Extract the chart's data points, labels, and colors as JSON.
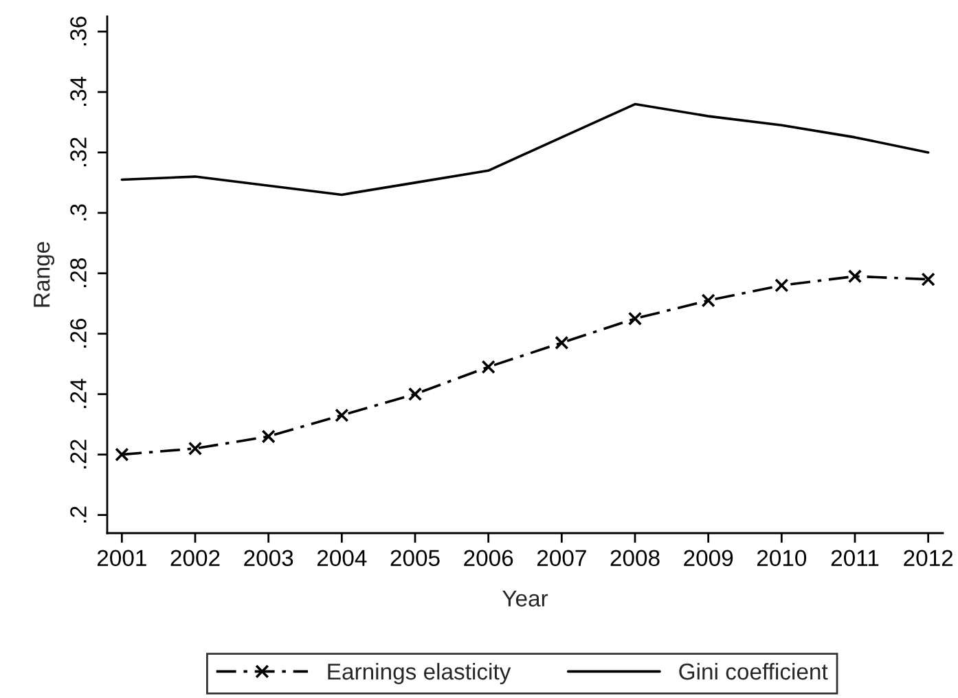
{
  "chart_data": {
    "type": "line",
    "xlabel": "Year",
    "ylabel": "Range",
    "x": [
      2001,
      2002,
      2003,
      2004,
      2005,
      2006,
      2007,
      2008,
      2009,
      2010,
      2011,
      2012
    ],
    "series": [
      {
        "name": "Earnings elasticity",
        "color": "#000000",
        "marker": "cross",
        "line_style": "dashdot",
        "values": [
          0.22,
          0.222,
          0.226,
          0.233,
          0.24,
          0.249,
          0.257,
          0.265,
          0.271,
          0.276,
          0.279,
          0.278
        ]
      },
      {
        "name": "Gini coefficient",
        "color": "#000000",
        "marker": "none",
        "line_style": "solid",
        "values": [
          0.311,
          0.312,
          0.309,
          0.306,
          0.31,
          0.314,
          0.325,
          0.336,
          0.332,
          0.329,
          0.325,
          0.32
        ]
      }
    ],
    "xlim": [
      2000.8,
      2012.2
    ],
    "ylim": [
      0.194,
      0.365
    ],
    "xticks": [
      2001,
      2002,
      2003,
      2004,
      2005,
      2006,
      2007,
      2008,
      2009,
      2010,
      2011,
      2012
    ],
    "yticks": [
      {
        "value": 0.2,
        "label": ".2"
      },
      {
        "value": 0.22,
        "label": ".22"
      },
      {
        "value": 0.24,
        "label": ".24"
      },
      {
        "value": 0.26,
        "label": ".26"
      },
      {
        "value": 0.28,
        "label": ".28"
      },
      {
        "value": 0.3,
        "label": ".3"
      },
      {
        "value": 0.32,
        "label": ".32"
      },
      {
        "value": 0.34,
        "label": ".34"
      },
      {
        "value": 0.36,
        "label": ".36"
      }
    ],
    "grid": false,
    "legend": "bottom"
  }
}
